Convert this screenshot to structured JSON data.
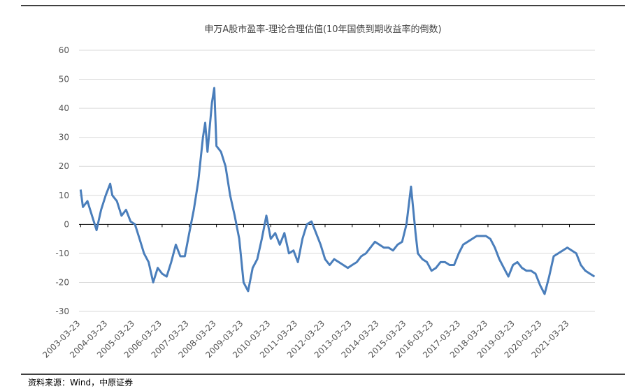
{
  "chart_data": {
    "type": "line",
    "title": "申万A股市盈率-理论合理估值(10年国债到期收益率的倒数)",
    "source": "资料来源：Wind，中原证券",
    "color": "#4a7ebb",
    "x": [
      "2003-03-23",
      "2003-04-23",
      "2003-06-23",
      "2003-08-23",
      "2003-10-23",
      "2003-12-23",
      "2004-02-23",
      "2004-04-23",
      "2004-05-23",
      "2004-07-23",
      "2004-09-23",
      "2004-11-23",
      "2005-01-23",
      "2005-03-23",
      "2005-05-23",
      "2005-07-23",
      "2005-09-23",
      "2005-11-23",
      "2006-01-23",
      "2006-03-23",
      "2006-05-23",
      "2006-07-23",
      "2006-09-23",
      "2006-11-23",
      "2007-01-23",
      "2007-03-23",
      "2007-05-23",
      "2007-07-23",
      "2007-09-23",
      "2007-10-23",
      "2007-11-23",
      "2008-01-23",
      "2008-02-23",
      "2008-03-23",
      "2008-05-23",
      "2008-07-23",
      "2008-09-23",
      "2008-11-23",
      "2009-01-23",
      "2009-03-23",
      "2009-05-23",
      "2009-07-23",
      "2009-09-23",
      "2009-11-23",
      "2010-01-23",
      "2010-03-23",
      "2010-05-23",
      "2010-07-23",
      "2010-09-23",
      "2010-11-23",
      "2011-01-23",
      "2011-03-23",
      "2011-05-23",
      "2011-07-23",
      "2011-09-23",
      "2011-11-23",
      "2012-01-23",
      "2012-03-23",
      "2012-05-23",
      "2012-07-23",
      "2012-09-23",
      "2012-11-23",
      "2013-01-23",
      "2013-03-23",
      "2013-05-23",
      "2013-07-23",
      "2013-09-23",
      "2013-11-23",
      "2014-01-23",
      "2014-03-23",
      "2014-05-23",
      "2014-07-23",
      "2014-09-23",
      "2014-11-23",
      "2015-01-23",
      "2015-03-23",
      "2015-05-23",
      "2015-06-23",
      "2015-07-23",
      "2015-08-23",
      "2015-10-23",
      "2015-12-23",
      "2016-02-23",
      "2016-04-23",
      "2016-06-23",
      "2016-08-23",
      "2016-10-23",
      "2016-12-23",
      "2017-02-23",
      "2017-04-23",
      "2017-06-23",
      "2017-08-23",
      "2017-10-23",
      "2017-12-23",
      "2018-02-23",
      "2018-04-23",
      "2018-06-23",
      "2018-08-23",
      "2018-10-23",
      "2018-12-23",
      "2019-02-23",
      "2019-04-23",
      "2019-06-23",
      "2019-08-23",
      "2019-10-23",
      "2019-12-23",
      "2020-02-23",
      "2020-04-23",
      "2020-06-23",
      "2020-08-23",
      "2020-10-23",
      "2020-12-23",
      "2021-02-23",
      "2021-04-23",
      "2021-06-23",
      "2021-08-23",
      "2021-10-23",
      "2021-12-23",
      "2022-02-23"
    ],
    "values": [
      12,
      6,
      8,
      3,
      -2,
      5,
      10,
      14,
      10,
      8,
      3,
      5,
      1,
      0,
      -5,
      -10,
      -13,
      -20,
      -15,
      -17,
      -18,
      -13,
      -7,
      -11,
      -11,
      -3,
      5,
      15,
      30,
      35,
      25,
      42,
      47,
      27,
      25,
      20,
      10,
      3,
      -5,
      -20,
      -23,
      -15,
      -12,
      -5,
      3,
      -5,
      -3,
      -7,
      -3,
      -10,
      -9,
      -13,
      -5,
      0,
      1,
      -3,
      -7,
      -12,
      -14,
      -12,
      -13,
      -14,
      -15,
      -14,
      -13,
      -11,
      -10,
      -8,
      -6,
      -7,
      -8,
      -8,
      -9,
      -7,
      -6,
      0,
      13,
      5,
      -3,
      -10,
      -12,
      -13,
      -16,
      -15,
      -13,
      -13,
      -14,
      -14,
      -10,
      -7,
      -6,
      -5,
      -4,
      -4,
      -4,
      -5,
      -8,
      -12,
      -15,
      -18,
      -14,
      -13,
      -15,
      -16,
      -16,
      -17,
      -21,
      -24,
      -18,
      -11,
      -10,
      -9,
      -8,
      -9,
      -10,
      -14,
      -16,
      -17,
      -18
    ],
    "xlim": [
      "2003-03-01",
      "2022-03-01"
    ],
    "xticks": [
      "2003-03-23",
      "2004-03-23",
      "2005-03-23",
      "2006-03-23",
      "2007-03-23",
      "2008-03-23",
      "2009-03-23",
      "2010-03-23",
      "2011-03-23",
      "2012-03-23",
      "2013-03-23",
      "2014-03-23",
      "2015-03-23",
      "2016-03-23",
      "2017-03-23",
      "2018-03-23",
      "2019-03-23",
      "2020-03-23",
      "2021-03-23"
    ],
    "ylim": [
      -30,
      60
    ],
    "yticks": [
      -30,
      -20,
      -10,
      0,
      10,
      20,
      30,
      40,
      50,
      60
    ],
    "grid": true
  }
}
